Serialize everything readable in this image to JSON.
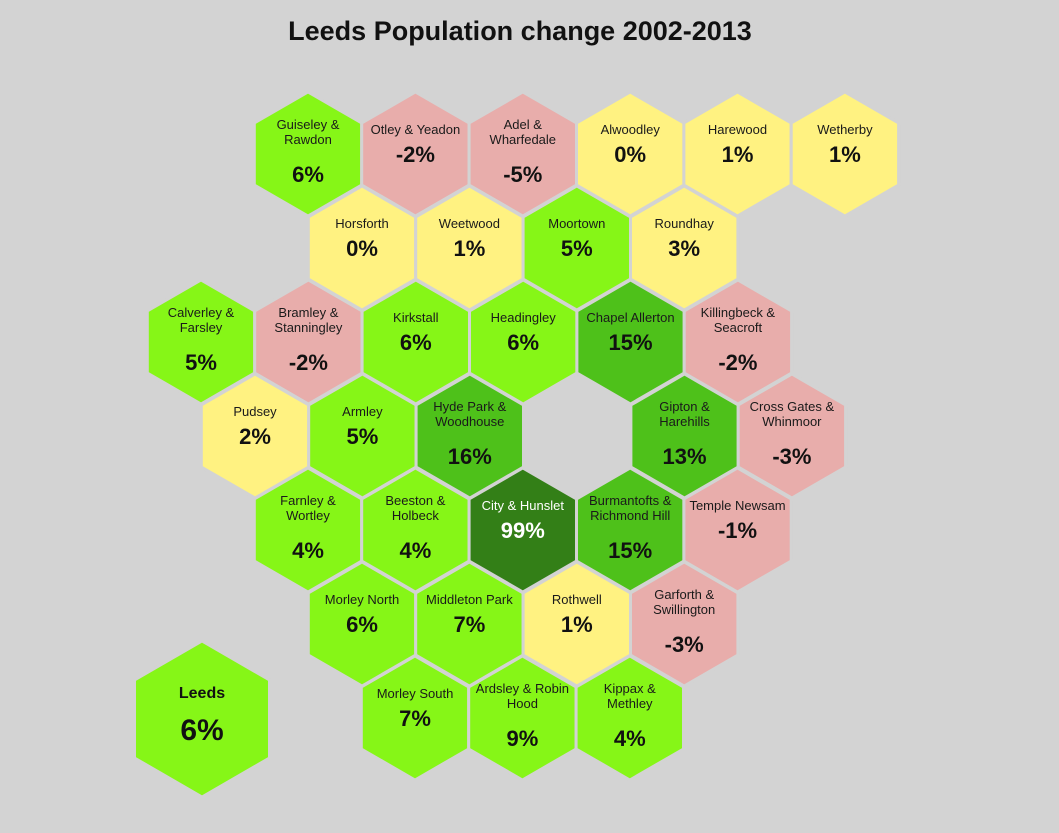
{
  "title": "Leeds Population change 2002-2013",
  "colors": {
    "background": "#d3d3d3",
    "decline": "#e8adab",
    "low": "#fff281",
    "moderate": "#86f617",
    "high": "#4ec11a",
    "highest": "#337f17",
    "border": "#d3d3d3"
  },
  "summary": {
    "name": "Leeds",
    "value": "6%",
    "category": "moderate"
  },
  "wards": [
    {
      "row": 0,
      "col": 0,
      "lines": [
        "Guiseley &",
        "Rawdon"
      ],
      "value": "6%",
      "category": "moderate"
    },
    {
      "row": 0,
      "col": 1,
      "lines": [
        "Otley & Yeadon"
      ],
      "value": "-2%",
      "category": "decline"
    },
    {
      "row": 0,
      "col": 2,
      "lines": [
        "Adel &",
        "Wharfedale"
      ],
      "value": "-5%",
      "category": "decline"
    },
    {
      "row": 0,
      "col": 3,
      "lines": [
        "Alwoodley"
      ],
      "value": "0%",
      "category": "low"
    },
    {
      "row": 0,
      "col": 4,
      "lines": [
        "Harewood"
      ],
      "value": "1%",
      "category": "low"
    },
    {
      "row": 0,
      "col": 5,
      "lines": [
        "Wetherby"
      ],
      "value": "1%",
      "category": "low"
    },
    {
      "row": 1,
      "col": 0,
      "lines": [
        "Horsforth"
      ],
      "value": "0%",
      "category": "low"
    },
    {
      "row": 1,
      "col": 1,
      "lines": [
        "Weetwood"
      ],
      "value": "1%",
      "category": "low"
    },
    {
      "row": 1,
      "col": 2,
      "lines": [
        "Moortown"
      ],
      "value": "5%",
      "category": "moderate"
    },
    {
      "row": 1,
      "col": 3,
      "lines": [
        "Roundhay"
      ],
      "value": "3%",
      "category": "low"
    },
    {
      "row": 2,
      "col": 0,
      "lines": [
        "Calverley &",
        "Farsley"
      ],
      "value": "5%",
      "category": "moderate"
    },
    {
      "row": 2,
      "col": 1,
      "lines": [
        "Bramley &",
        "Stanningley"
      ],
      "value": "-2%",
      "category": "decline"
    },
    {
      "row": 2,
      "col": 2,
      "lines": [
        "Kirkstall"
      ],
      "value": "6%",
      "category": "moderate"
    },
    {
      "row": 2,
      "col": 3,
      "lines": [
        "Headingley"
      ],
      "value": "6%",
      "category": "moderate"
    },
    {
      "row": 2,
      "col": 4,
      "lines": [
        "Chapel Allerton"
      ],
      "value": "15%",
      "category": "high"
    },
    {
      "row": 2,
      "col": 5,
      "lines": [
        "Killingbeck &",
        "Seacroft"
      ],
      "value": "-2%",
      "category": "decline"
    },
    {
      "row": 3,
      "col": 0,
      "lines": [
        "Pudsey"
      ],
      "value": "2%",
      "category": "low"
    },
    {
      "row": 3,
      "col": 1,
      "lines": [
        "Armley"
      ],
      "value": "5%",
      "category": "moderate"
    },
    {
      "row": 3,
      "col": 2,
      "lines": [
        "Hyde Park &",
        "Woodhouse"
      ],
      "value": "16%",
      "category": "high"
    },
    {
      "row": 3,
      "col": 4,
      "lines": [
        "Gipton &",
        "Harehills"
      ],
      "value": "13%",
      "category": "high"
    },
    {
      "row": 3,
      "col": 5,
      "lines": [
        "Cross Gates &",
        "Whinmoor"
      ],
      "value": "-3%",
      "category": "decline"
    },
    {
      "row": 4,
      "col": 0,
      "lines": [
        "Farnley &",
        "Wortley"
      ],
      "value": "4%",
      "category": "moderate"
    },
    {
      "row": 4,
      "col": 1,
      "lines": [
        "Beeston &",
        "Holbeck"
      ],
      "value": "4%",
      "category": "moderate"
    },
    {
      "row": 4,
      "col": 2,
      "lines": [
        "City & Hunslet"
      ],
      "value": "99%",
      "category": "highest"
    },
    {
      "row": 4,
      "col": 3,
      "lines": [
        "Burmantofts &",
        "Richmond Hill"
      ],
      "value": "15%",
      "category": "high"
    },
    {
      "row": 4,
      "col": 4,
      "lines": [
        "Temple Newsam"
      ],
      "value": "-1%",
      "category": "decline"
    },
    {
      "row": 5,
      "col": 0,
      "lines": [
        "Morley North"
      ],
      "value": "6%",
      "category": "moderate"
    },
    {
      "row": 5,
      "col": 1,
      "lines": [
        "Middleton Park"
      ],
      "value": "7%",
      "category": "moderate"
    },
    {
      "row": 5,
      "col": 2,
      "lines": [
        "Rothwell"
      ],
      "value": "1%",
      "category": "low"
    },
    {
      "row": 5,
      "col": 3,
      "lines": [
        "Garforth &",
        "Swillington"
      ],
      "value": "-3%",
      "category": "decline"
    },
    {
      "row": 6,
      "col": 0,
      "lines": [
        "Morley South"
      ],
      "value": "7%",
      "category": "moderate"
    },
    {
      "row": 6,
      "col": 1,
      "lines": [
        "Ardsley & Robin",
        "Hood"
      ],
      "value": "9%",
      "category": "moderate"
    },
    {
      "row": 6,
      "col": 2,
      "lines": [
        "Kippax &",
        "Methley"
      ],
      "value": "4%",
      "category": "moderate"
    }
  ]
}
